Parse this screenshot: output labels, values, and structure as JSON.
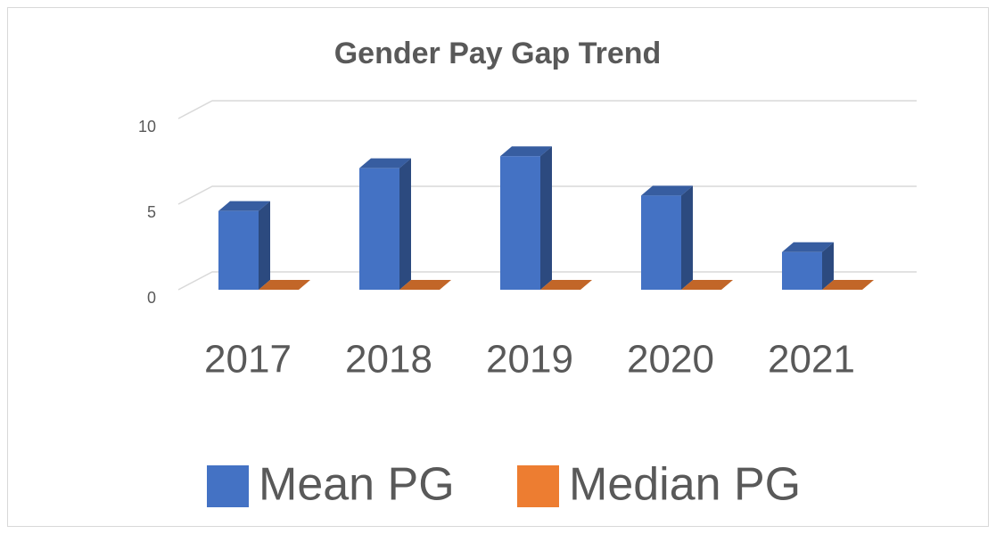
{
  "chart_data": {
    "type": "bar3d",
    "title": "Gender Pay Gap Trend",
    "categories": [
      "2017",
      "2018",
      "2019",
      "2020",
      "2021"
    ],
    "series": [
      {
        "name": "Mean PG",
        "color": "#4472c4",
        "values": [
          4.6,
          7.1,
          7.8,
          5.5,
          2.2
        ]
      },
      {
        "name": "Median PG",
        "color": "#ed7d31",
        "values": [
          0,
          0,
          0,
          0,
          0
        ]
      }
    ],
    "ylim": [
      0,
      10
    ],
    "yticks": [
      0,
      5,
      10
    ],
    "grid": true,
    "legend": "bottom"
  }
}
